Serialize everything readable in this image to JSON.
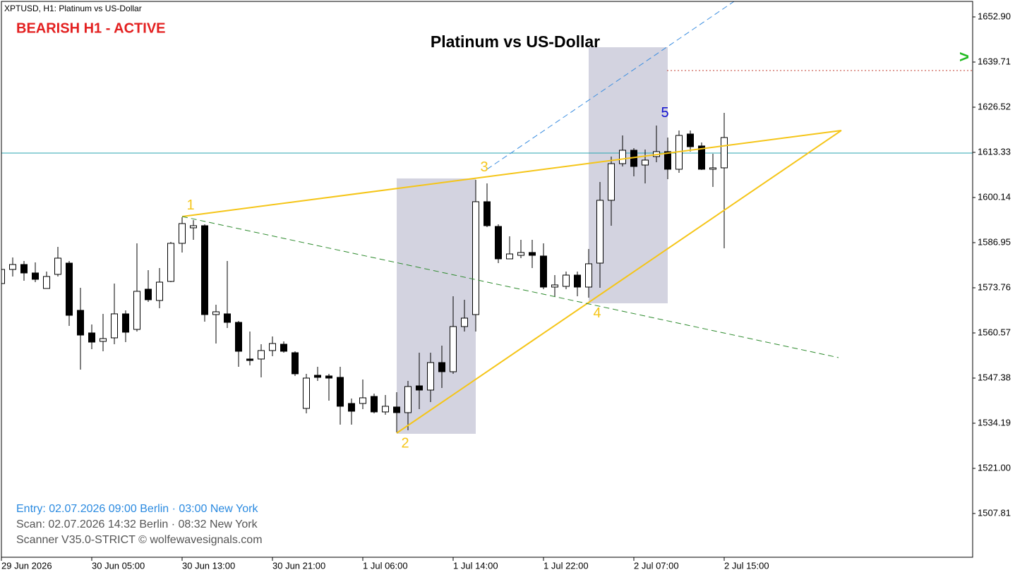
{
  "chart_data": {
    "type": "candlestick",
    "symbol_label": "XPTUSD, H1:  Platinum vs US-Dollar",
    "status": "BEARISH H1 - ACTIVE",
    "title": "Platinum vs US-Dollar",
    "signal_marker": ">",
    "info_lines": [
      {
        "text": "Entry: 02.07.2026  09:00 Berlin · 03:00 New York",
        "color": "#2a8ae0"
      },
      {
        "text": "Scan:  02.07.2026  14:32 Berlin · 08:32 New York",
        "color": "#555555"
      },
      {
        "text": "Scanner V35.0-STRICT   © wolfewavesignals.com",
        "color": "#555555"
      }
    ],
    "categories": [
      "29 Jun 2026",
      null,
      null,
      null,
      null,
      null,
      null,
      null,
      "30 Jun 05:00",
      null,
      null,
      null,
      null,
      null,
      null,
      null,
      "30 Jun 13:00",
      null,
      null,
      null,
      null,
      null,
      null,
      null,
      "30 Jun 21:00",
      null,
      null,
      null,
      null,
      null,
      null,
      null,
      "1 Jul 06:00",
      null,
      null,
      null,
      null,
      null,
      null,
      null,
      "1 Jul 14:00",
      null,
      null,
      null,
      null,
      null,
      null,
      null,
      "1 Jul 22:00",
      null,
      null,
      null,
      null,
      null,
      null,
      null,
      "2 Jul 07:00",
      null,
      null,
      null,
      null,
      null,
      null,
      null,
      "2 Jul 15:00"
    ],
    "open": [
      1575.0,
      1579.12,
      1580.56,
      1578.09,
      1573.56,
      1577.68,
      1580.97,
      1567.17,
      1560.57,
      1558.1,
      1559.13,
      1566.14,
      1561.6,
      1573.35,
      1570.05,
      1575.62,
      1586.75,
      1591.28,
      1591.9,
      1565.93,
      1566.14,
      1563.66,
      1552.95,
      1552.95,
      1555.42,
      1557.27,
      1554.8,
      1538.52,
      1548.2,
      1548.0,
      1547.59,
      1539.96,
      1539.96,
      1542.02,
      1537.49,
      1538.93,
      1537.28,
      1545.11,
      1543.88,
      1551.91,
      1549.24,
      1562.43,
      1565.93,
      1598.91,
      1591.69,
      1582.21,
      1583.24,
      1584.07,
      1583.04,
      1573.97,
      1574.17,
      1577.47,
      1573.97,
      1580.97,
      1599.32,
      1610.03,
      1613.95,
      1609.62,
      1612.1,
      1613.54,
      1608.39,
      1618.69,
      1615.19,
      1608.39,
      1608.8
    ],
    "high": [
      1582.62,
      1582.62,
      1581.59,
      1581.18,
      1578.5,
      1585.71,
      1581.59,
      1573.76,
      1563.04,
      1566.14,
      1575.0,
      1567.17,
      1586.75,
      1578.91,
      1579.53,
      1587.16,
      1594.37,
      1593.55,
      1592.31,
      1568.81,
      1581.59,
      1564.07,
      1560.98,
      1557.27,
      1559.54,
      1558.1,
      1555.21,
      1548.62,
      1550.68,
      1548.62,
      1550.68,
      1541.4,
      1546.97,
      1542.85,
      1542.43,
      1543.26,
      1546.56,
      1554.8,
      1554.8,
      1556.86,
      1571.29,
      1570.26,
      1605.29,
      1604.26,
      1592.31,
      1588.81,
      1587.78,
      1587.78,
      1586.75,
      1577.47,
      1578.5,
      1578.5,
      1585.1,
      1604.68,
      1612.1,
      1618.28,
      1614.57,
      1614.16,
      1621.16,
      1617.66,
      1619.72,
      1619.72,
      1616.22,
      1612.92,
      1624.87
    ],
    "low": [
      1574.38,
      1577.06,
      1575.82,
      1575.41,
      1573.56,
      1577.06,
      1562.63,
      1549.85,
      1555.83,
      1555.21,
      1557.27,
      1557.89,
      1560.98,
      1569.64,
      1567.78,
      1575.41,
      1584.07,
      1587.78,
      1563.87,
      1557.48,
      1562.01,
      1550.68,
      1551.09,
      1547.59,
      1553.77,
      1554.8,
      1548.0,
      1537.08,
      1546.56,
      1540.79,
      1533.78,
      1533.78,
      1538.31,
      1537.08,
      1536.66,
      1531.51,
      1532.13,
      1538.31,
      1540.37,
      1544.49,
      1548.62,
      1560.98,
      1560.98,
      1591.49,
      1580.97,
      1582.21,
      1582.42,
      1579.53,
      1573.35,
      1571.29,
      1573.35,
      1571.29,
      1570.88,
      1573.76,
      1591.9,
      1609.21,
      1606.32,
      1604.26,
      1610.45,
      1605.5,
      1607.36,
      1613.54,
      1608.18,
      1603.23,
      1585.3
    ],
    "close": [
      1579.12,
      1580.56,
      1578.09,
      1576.23,
      1577.06,
      1582.42,
      1565.72,
      1559.95,
      1557.89,
      1558.92,
      1566.14,
      1560.78,
      1572.73,
      1570.26,
      1575.41,
      1586.75,
      1592.52,
      1591.9,
      1565.93,
      1566.75,
      1563.66,
      1555.21,
      1552.53,
      1555.42,
      1557.48,
      1555.21,
      1548.62,
      1547.38,
      1547.59,
      1547.38,
      1539.14,
      1537.69,
      1541.61,
      1537.49,
      1539.14,
      1537.28,
      1544.91,
      1543.88,
      1551.91,
      1549.24,
      1562.43,
      1564.9,
      1598.91,
      1591.9,
      1582.21,
      1583.65,
      1584.07,
      1583.24,
      1573.97,
      1574.59,
      1577.47,
      1573.97,
      1580.77,
      1599.32,
      1610.03,
      1613.95,
      1609.21,
      1611.07,
      1613.54,
      1608.39,
      1618.28,
      1614.98,
      1608.39,
      1608.8,
      1617.66
    ],
    "up_color": "#ffffff",
    "down_color": "#000000",
    "ylim": [
      1495.03,
      1657.43
    ],
    "yticks": [
      {
        "value": 1652.9,
        "label": "1652.90"
      },
      {
        "value": 1639.71,
        "label": "1639.71"
      },
      {
        "value": 1626.52,
        "label": "1626.52"
      },
      {
        "value": 1613.33,
        "label": "1613.33"
      },
      {
        "value": 1600.14,
        "label": "1600.14"
      },
      {
        "value": 1586.95,
        "label": "1586.95"
      },
      {
        "value": 1573.76,
        "label": "1573.76"
      },
      {
        "value": 1560.57,
        "label": "1560.57"
      },
      {
        "value": 1547.38,
        "label": "1547.38"
      },
      {
        "value": 1534.19,
        "label": "1534.19"
      },
      {
        "value": 1521,
        "label": "1521.00"
      },
      {
        "value": 1507.81,
        "label": "1507.81"
      }
    ],
    "zones": [
      {
        "x": [
          35,
          42
        ],
        "y": [
          1531.1,
          1605.71
        ]
      },
      {
        "x": [
          52,
          59
        ],
        "y": [
          1569.23,
          1644.04
        ]
      }
    ],
    "zone_color": "#d3d3e0",
    "levels": [
      {
        "y": 1613.13,
        "x_from": 0,
        "color": "#2aa6b0",
        "style": "solid"
      },
      {
        "y": 1637.24,
        "x_from": 58.94,
        "color": "#c0392b",
        "style": "dotted"
      }
    ],
    "lines": [
      {
        "x": [
          16,
          74.375
        ],
        "y": [
          1594.58,
          1619.72
        ],
        "color": "#f5c518",
        "style": "solid"
      },
      {
        "x": [
          35,
          74.375
        ],
        "y": [
          1531.3,
          1619.72
        ],
        "color": "#f5c518",
        "style": "solid"
      },
      {
        "x": [
          16,
          74.125
        ],
        "y": [
          1594.58,
          1553.36
        ],
        "color": "#2e8b2e",
        "style": "dashed"
      },
      {
        "x": [
          43,
          64.875
        ],
        "y": [
          1608.39,
          1657.43
        ],
        "color": "#3c8ee0",
        "style": "dashed"
      }
    ],
    "wave_points": [
      {
        "label": "1",
        "x": 16,
        "y": 1594.58,
        "color": "#f5c518"
      },
      {
        "label": "2",
        "x": 35,
        "y": 1531.3,
        "color": "#f5c518"
      },
      {
        "label": "3",
        "x": 42,
        "y": 1605.71,
        "color": "#f5c518"
      },
      {
        "label": "4",
        "x": 52,
        "y": 1569.23,
        "color": "#f5c518"
      },
      {
        "label": "5",
        "x": 58,
        "y": 1621.58,
        "color": "#1010d0"
      }
    ]
  }
}
